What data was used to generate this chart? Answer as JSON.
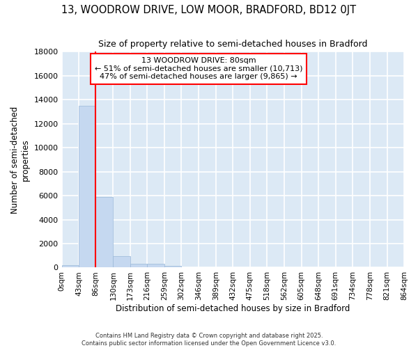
{
  "title": "13, WOODROW DRIVE, LOW MOOR, BRADFORD, BD12 0JT",
  "subtitle": "Size of property relative to semi-detached houses in Bradford",
  "xlabel": "Distribution of semi-detached houses by size in Bradford",
  "ylabel": "Number of semi-detached\nproperties",
  "property_line_x": 86,
  "annotation_title": "13 WOODROW DRIVE: 80sqm",
  "annotation_line1": "← 51% of semi-detached houses are smaller (10,713)",
  "annotation_line2": "47% of semi-detached houses are larger (9,865) →",
  "bin_edges": [
    0,
    43,
    86,
    130,
    173,
    216,
    259,
    302,
    346,
    389,
    432,
    475,
    518,
    562,
    605,
    648,
    691,
    734,
    778,
    821,
    864
  ],
  "bar_heights": [
    200,
    13500,
    5900,
    950,
    320,
    290,
    130,
    50,
    0,
    0,
    0,
    0,
    0,
    0,
    0,
    0,
    0,
    0,
    0,
    0
  ],
  "bar_color": "#c5d8f0",
  "bar_edgecolor": "#9ab8d8",
  "line_color": "red",
  "annotation_box_edgecolor": "red",
  "plot_bg_color": "#dce9f5",
  "fig_bg_color": "#ffffff",
  "grid_color": "white",
  "ylim": [
    0,
    18000
  ],
  "yticks": [
    0,
    2000,
    4000,
    6000,
    8000,
    10000,
    12000,
    14000,
    16000,
    18000
  ],
  "xtick_labels": [
    "0sqm",
    "43sqm",
    "86sqm",
    "130sqm",
    "173sqm",
    "216sqm",
    "259sqm",
    "302sqm",
    "346sqm",
    "389sqm",
    "432sqm",
    "475sqm",
    "518sqm",
    "562sqm",
    "605sqm",
    "648sqm",
    "691sqm",
    "734sqm",
    "778sqm",
    "821sqm",
    "864sqm"
  ],
  "footer_line1": "Contains HM Land Registry data © Crown copyright and database right 2025.",
  "footer_line2": "Contains public sector information licensed under the Open Government Licence v3.0."
}
